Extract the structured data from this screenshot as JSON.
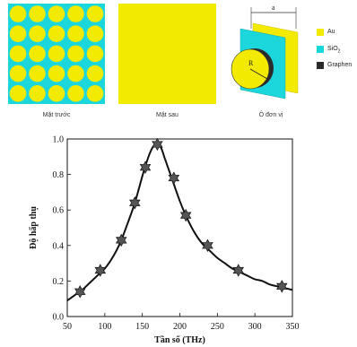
{
  "figure": {
    "front_caption": "Mặt trước",
    "back_caption": "Mặt sau",
    "unit_caption": "Ô đơn vị",
    "unit_labels": {
      "a": "a",
      "R": "R"
    },
    "colors": {
      "gold": "#f2ea00",
      "sio2": "#1bd7dc",
      "graphene": "#2b2b2b"
    },
    "legend": [
      {
        "label": "Au",
        "color": "#f2ea00"
      },
      {
        "label": "SiO2",
        "label_main": "SiO",
        "label_sub": "2",
        "color": "#1bd7dc"
      },
      {
        "label": "Graphen",
        "color": "#2b2b2b"
      }
    ]
  },
  "chart_data": {
    "type": "line",
    "xlabel": "Tần số (THz)",
    "ylabel": "Độ hấp thụ",
    "xlim": [
      50,
      350
    ],
    "ylim": [
      0.0,
      1.0
    ],
    "xticks": [
      50,
      100,
      150,
      200,
      250,
      300,
      350
    ],
    "xtick_labels": [
      "50",
      "100",
      "150",
      "200",
      "250",
      "300",
      "350"
    ],
    "yticks": [
      0.0,
      0.2,
      0.4,
      0.6,
      0.8,
      1.0
    ],
    "ytick_labels": [
      "0.0",
      "0.2",
      "0.4",
      "0.6",
      "0.8",
      "1.0"
    ],
    "curve": {
      "x": [
        50,
        60,
        70,
        80,
        90,
        100,
        110,
        120,
        130,
        140,
        150,
        155,
        160,
        165,
        170,
        175,
        180,
        185,
        190,
        200,
        210,
        220,
        230,
        240,
        250,
        260,
        270,
        280,
        290,
        300,
        310,
        320,
        330,
        340,
        350
      ],
      "y": [
        0.09,
        0.12,
        0.15,
        0.19,
        0.23,
        0.27,
        0.33,
        0.41,
        0.52,
        0.64,
        0.79,
        0.86,
        0.92,
        0.96,
        0.97,
        0.95,
        0.89,
        0.83,
        0.77,
        0.65,
        0.55,
        0.47,
        0.41,
        0.37,
        0.33,
        0.3,
        0.27,
        0.25,
        0.23,
        0.21,
        0.2,
        0.18,
        0.17,
        0.16,
        0.15
      ]
    },
    "markers": {
      "x": [
        67,
        94,
        122,
        140,
        154,
        170,
        192,
        208,
        237,
        278,
        336
      ],
      "y": [
        0.14,
        0.26,
        0.43,
        0.64,
        0.84,
        0.97,
        0.78,
        0.57,
        0.4,
        0.26,
        0.17
      ]
    }
  }
}
